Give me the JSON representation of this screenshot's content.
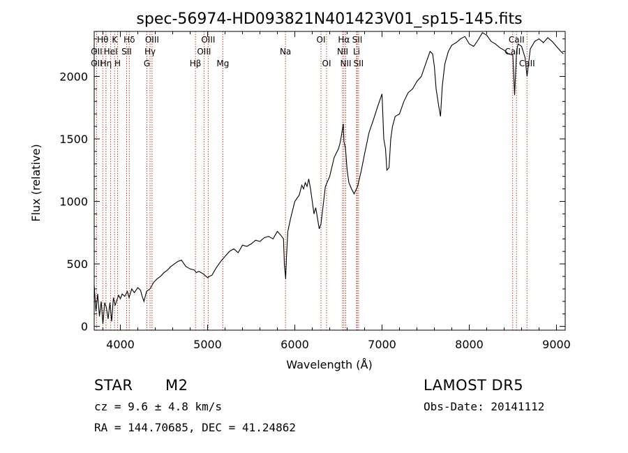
{
  "chart_data": {
    "type": "line",
    "title": "spec-56974-HD093821N401423V01_sp15-145.fits",
    "xlabel": "Wavelength (Å)",
    "ylabel": "Flux (relative)",
    "xlim": [
      3700,
      9100
    ],
    "ylim": [
      -30,
      2360
    ],
    "x_ticks": [
      4000,
      5000,
      6000,
      7000,
      8000,
      9000
    ],
    "y_ticks": [
      0,
      500,
      1000,
      1500,
      2000
    ],
    "grid": false,
    "line_color": "#000000",
    "marker_color": "#c0392b",
    "series": [
      {
        "x": [
          3700,
          3720,
          3740,
          3760,
          3780,
          3800,
          3820,
          3840,
          3860,
          3880,
          3900,
          3920,
          3940,
          3960,
          3980,
          4000,
          4020,
          4050,
          4080,
          4100,
          4130,
          4160,
          4200,
          4230,
          4250,
          4270,
          4300,
          4340,
          4380,
          4420,
          4460,
          4500,
          4540,
          4580,
          4620,
          4660,
          4700,
          4750,
          4800,
          4850,
          4870,
          4900,
          4950,
          5000,
          5020,
          5050,
          5100,
          5150,
          5200,
          5250,
          5300,
          5350,
          5400,
          5450,
          5500,
          5550,
          5600,
          5650,
          5700,
          5750,
          5800,
          5850,
          5870,
          5880,
          5895,
          5905,
          5920,
          5950,
          6000,
          6050,
          6080,
          6100,
          6120,
          6140,
          6160,
          6180,
          6200,
          6220,
          6240,
          6280,
          6300,
          6350,
          6400,
          6450,
          6500,
          6520,
          6540,
          6555,
          6563,
          6580,
          6600,
          6620,
          6650,
          6680,
          6700,
          6720,
          6740,
          6760,
          6800,
          6850,
          6900,
          6950,
          7000,
          7020,
          7040,
          7055,
          7080,
          7100,
          7120,
          7150,
          7200,
          7250,
          7300,
          7350,
          7400,
          7450,
          7500,
          7550,
          7580,
          7600,
          7620,
          7650,
          7670,
          7690,
          7720,
          7760,
          7800,
          7850,
          7900,
          7950,
          8000,
          8050,
          8100,
          8150,
          8200,
          8250,
          8300,
          8350,
          8400,
          8450,
          8500,
          8520,
          8542,
          8560,
          8600,
          8640,
          8662,
          8700,
          8750,
          8800,
          8850,
          8900,
          8950,
          9000,
          9050,
          9080
        ],
        "y": [
          330,
          120,
          260,
          80,
          200,
          20,
          190,
          150,
          60,
          190,
          40,
          230,
          170,
          210,
          250,
          220,
          260,
          240,
          280,
          230,
          300,
          270,
          310,
          290,
          240,
          200,
          280,
          300,
          350,
          380,
          400,
          430,
          450,
          480,
          500,
          520,
          530,
          480,
          460,
          450,
          430,
          440,
          420,
          390,
          400,
          410,
          470,
          520,
          560,
          600,
          620,
          590,
          650,
          640,
          660,
          690,
          680,
          710,
          720,
          700,
          760,
          720,
          700,
          500,
          380,
          560,
          760,
          860,
          1000,
          1050,
          1130,
          1100,
          1150,
          1120,
          1180,
          1100,
          1000,
          900,
          950,
          780,
          820,
          1120,
          1200,
          1350,
          1420,
          1470,
          1550,
          1620,
          1480,
          1430,
          1250,
          1150,
          1100,
          1060,
          1090,
          1120,
          1180,
          1240,
          1380,
          1550,
          1650,
          1760,
          1860,
          1500,
          1420,
          1250,
          1270,
          1500,
          1600,
          1680,
          1700,
          1800,
          1870,
          1900,
          1960,
          2000,
          2100,
          2200,
          2180,
          2080,
          1900,
          1760,
          1680,
          1920,
          2100,
          2200,
          2250,
          2270,
          2300,
          2320,
          2260,
          2240,
          2290,
          2350,
          2330,
          2280,
          2260,
          2230,
          2210,
          2180,
          2170,
          1850,
          2200,
          2260,
          2240,
          2150,
          2000,
          2220,
          2280,
          2300,
          2270,
          2310,
          2280,
          2240,
          2200,
          2180
        ]
      }
    ],
    "line_markers": [
      {
        "label": "Hθ",
        "x": 3798,
        "row": 0
      },
      {
        "label": "K",
        "x": 3934,
        "row": 0
      },
      {
        "label": "Hδ",
        "x": 4102,
        "row": 0
      },
      {
        "label": "OIII",
        "x": 4363,
        "row": 0
      },
      {
        "label": "OIII",
        "x": 5007,
        "row": 0
      },
      {
        "label": "OI",
        "x": 6300,
        "row": 0
      },
      {
        "label": "Hα",
        "x": 6563,
        "row": 0
      },
      {
        "label": "SII",
        "x": 6716,
        "row": 0
      },
      {
        "label": "CaII",
        "x": 8542,
        "row": 0
      },
      {
        "label": "OII",
        "x": 3727,
        "row": 1
      },
      {
        "label": "HeI",
        "x": 3889,
        "row": 1
      },
      {
        "label": "SII",
        "x": 4072,
        "row": 1
      },
      {
        "label": "Hγ",
        "x": 4340,
        "row": 1
      },
      {
        "label": "OIII",
        "x": 4959,
        "row": 1
      },
      {
        "label": "Na",
        "x": 5893,
        "row": 1
      },
      {
        "label": "NII",
        "x": 6548,
        "row": 1
      },
      {
        "label": "Li",
        "x": 6708,
        "row": 1
      },
      {
        "label": "CaII",
        "x": 8498,
        "row": 1
      },
      {
        "label": "OII",
        "x": 3727,
        "row": 2
      },
      {
        "label": "Hη",
        "x": 3835,
        "row": 2
      },
      {
        "label": "H",
        "x": 3968,
        "row": 2
      },
      {
        "label": "G",
        "x": 4304,
        "row": 2
      },
      {
        "label": "Hβ",
        "x": 4861,
        "row": 2
      },
      {
        "label": "Mg",
        "x": 5175,
        "row": 2
      },
      {
        "label": "OI",
        "x": 6364,
        "row": 2
      },
      {
        "label": "NII",
        "x": 6584,
        "row": 2
      },
      {
        "label": "SII",
        "x": 6731,
        "row": 2
      },
      {
        "label": "CaII",
        "x": 8662,
        "row": 2
      }
    ]
  },
  "info": {
    "object_type": "STAR",
    "subclass": "M2",
    "survey": "LAMOST  DR5",
    "redshift_line": "cz = 9.6 ± 4.8 km/s",
    "obs_date": "Obs-Date: 20141112",
    "coords": "RA = 144.70685, DEC =  41.24862"
  }
}
